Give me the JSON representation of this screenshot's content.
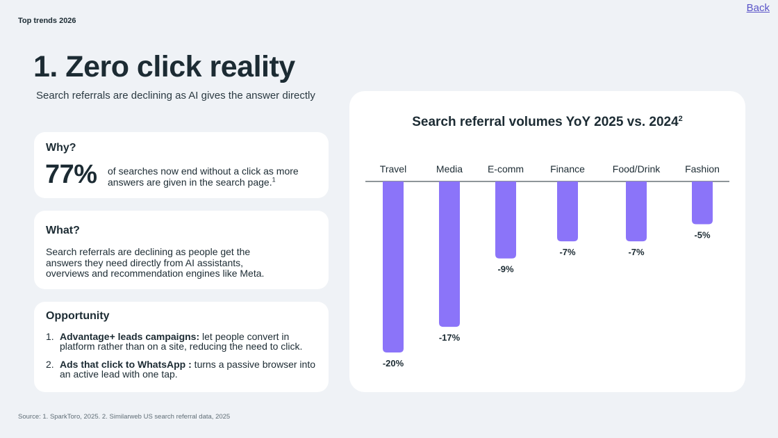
{
  "header": {
    "eyebrow": "Top trends 2026",
    "back_label": "Back"
  },
  "main": {
    "title": "1. Zero click reality",
    "subtitle": "Search referrals are declining as AI gives the answer directly"
  },
  "why": {
    "heading": "Why?",
    "stat": "77%",
    "text": "of searches now end without a click as more answers are given in the search page.",
    "footnote": "1"
  },
  "what": {
    "heading": "What?",
    "text": "Search referrals are declining as people get the answers they need directly from AI assistants, overviews and recommendation engines like Meta."
  },
  "opportunity": {
    "heading": "Opportunity",
    "items": [
      {
        "num": "1.",
        "bold": "Advantage+ leads campaigns:",
        "text": " let people convert in platform rather than on a site, reducing the need to click."
      },
      {
        "num": "2.",
        "bold": "Ads that click to WhatsApp :",
        "text": " turns a passive browser into an active lead with one tap."
      }
    ]
  },
  "chart_data": {
    "type": "bar",
    "title": "Search referral volumes YoY 2025 vs. 2024",
    "title_footnote": "2",
    "categories": [
      "Travel",
      "Media",
      "E-comm",
      "Finance",
      "Food/Drink",
      "Fashion"
    ],
    "values": [
      -20,
      -17,
      -9,
      -7,
      -7,
      -5
    ],
    "labels": [
      "-20%",
      "-17%",
      "-9%",
      "-7%",
      "-7%",
      "-5%"
    ],
    "ylim": [
      -20,
      0
    ],
    "xlabel": "",
    "ylabel": "",
    "grid": false,
    "bar_color": "#8b74f9"
  },
  "footer": {
    "source": "Source: 1. SparkToro, 2025. 2. Similarweb US search referral data, 2025"
  }
}
